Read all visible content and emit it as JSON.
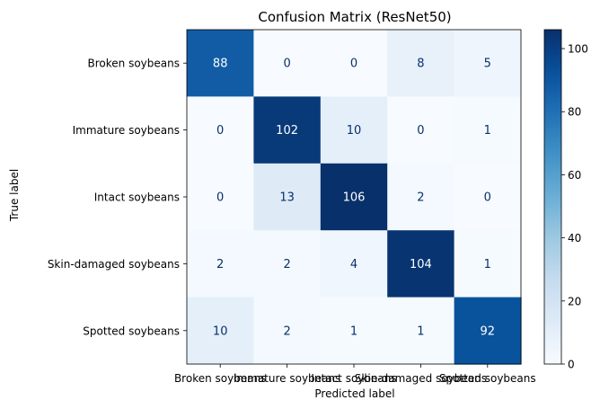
{
  "chart_data": {
    "type": "heatmap",
    "title": "Confusion Matrix (ResNet50)",
    "xlabel": "Predicted label",
    "ylabel": "True label",
    "row_labels": [
      "Broken soybeans",
      "Immature soybeans",
      "Intact soybeans",
      "Skin-damaged soybeans",
      "Spotted soybeans"
    ],
    "col_labels": [
      "Broken soybeans",
      "Immature soybeans",
      "Intact soybeans",
      "Skin-damaged soybeans",
      "Spotted soybeans"
    ],
    "matrix": [
      [
        88,
        0,
        0,
        8,
        5
      ],
      [
        0,
        102,
        10,
        0,
        1
      ],
      [
        0,
        13,
        106,
        2,
        0
      ],
      [
        2,
        2,
        4,
        104,
        1
      ],
      [
        10,
        2,
        1,
        1,
        92
      ]
    ],
    "colormap": "Blues",
    "colormap_light": "#f7fbff",
    "colormap_dark": "#08306b",
    "value_range": [
      0,
      106
    ],
    "colorbar_ticks": [
      0,
      20,
      40,
      60,
      80,
      100
    ]
  }
}
